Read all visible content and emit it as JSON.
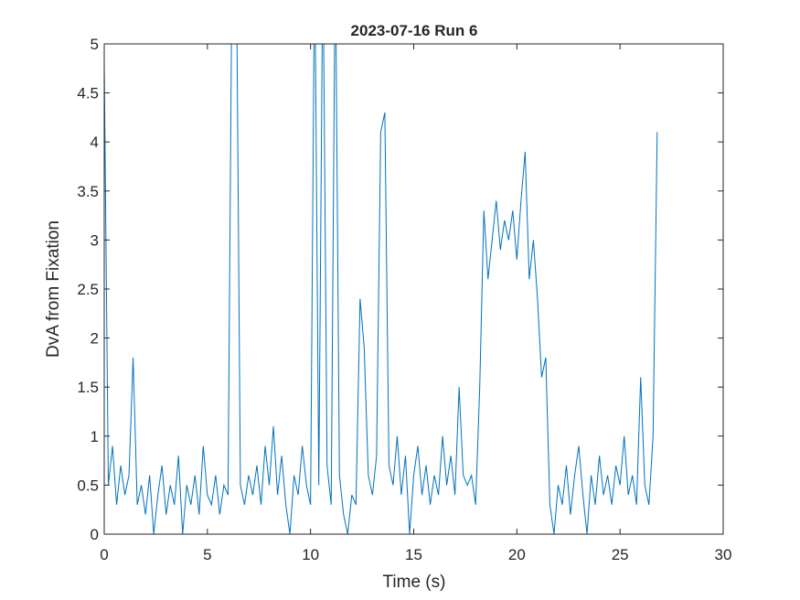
{
  "chart_data": {
    "type": "line",
    "title": "2023-07-16 Run 6",
    "x_label": "Time (s)",
    "y_label": "DvA from Fixation",
    "color": "#0072bd",
    "x": [
      0,
      0.2,
      0.4,
      0.6,
      0.8,
      1,
      1.2,
      1.4,
      1.6,
      1.8,
      2,
      2.2,
      2.4,
      2.6,
      2.8,
      3,
      3.2,
      3.4,
      3.6,
      3.8,
      4,
      4.2,
      4.4,
      4.6,
      4.8,
      5,
      5.2,
      5.4,
      5.6,
      5.8,
      6,
      6.2,
      6.4,
      6.6,
      6.8,
      7,
      7.2,
      7.4,
      7.6,
      7.8,
      8,
      8.2,
      8.4,
      8.6,
      8.8,
      9,
      9.2,
      9.4,
      9.6,
      9.8,
      10,
      10.2,
      10.4,
      10.6,
      10.8,
      11,
      11.2,
      11.4,
      11.6,
      11.8,
      12,
      12.2,
      12.4,
      12.6,
      12.8,
      13,
      13.2,
      13.4,
      13.6,
      13.8,
      14,
      14.2,
      14.4,
      14.6,
      14.8,
      15,
      15.2,
      15.4,
      15.6,
      15.8,
      16,
      16.2,
      16.4,
      16.6,
      16.8,
      17,
      17.2,
      17.4,
      17.6,
      17.8,
      18,
      18.2,
      18.4,
      18.6,
      18.8,
      19,
      19.2,
      19.4,
      19.6,
      19.8,
      20,
      20.2,
      20.4,
      20.6,
      20.8,
      21,
      21.2,
      21.4,
      21.6,
      21.8,
      22,
      22.2,
      22.4,
      22.6,
      22.8,
      23,
      23.2,
      23.4,
      23.6,
      23.8,
      24,
      24.2,
      24.4,
      24.6,
      24.8,
      25,
      25.2,
      25.4,
      25.6,
      25.8,
      26,
      26.2,
      26.4,
      26.6,
      26.8
    ],
    "values": [
      4.8,
      0.5,
      0.9,
      0.3,
      0.7,
      0.4,
      0.6,
      1.8,
      0.3,
      0.5,
      0.2,
      0.6,
      0,
      0.4,
      0.7,
      0.2,
      0.5,
      0.3,
      0.8,
      0,
      0.5,
      0.3,
      0.6,
      0.2,
      0.9,
      0.4,
      0.3,
      0.6,
      0.2,
      0.5,
      0.4,
      6,
      6,
      0.5,
      0.3,
      0.6,
      0.4,
      0.7,
      0.3,
      0.9,
      0.5,
      1.1,
      0.4,
      0.8,
      0.3,
      0,
      0.6,
      0.4,
      0.9,
      0.5,
      0.3,
      6,
      0.5,
      6,
      0.7,
      0.3,
      6,
      0.6,
      0.2,
      0,
      0.4,
      0.3,
      2.4,
      1.9,
      0.6,
      0.4,
      0.8,
      4.1,
      4.3,
      0.7,
      0.5,
      1,
      0.4,
      0.8,
      0,
      0.6,
      0.9,
      0.4,
      0.7,
      0.3,
      0.6,
      0.4,
      1,
      0.5,
      0.8,
      0.4,
      1.5,
      0.6,
      0.5,
      0.6,
      0.3,
      1.5,
      3.3,
      2.6,
      3,
      3.4,
      2.9,
      3.2,
      3,
      3.3,
      2.8,
      3.4,
      3.9,
      2.6,
      3,
      2.4,
      1.6,
      1.8,
      0.3,
      0,
      0.5,
      0.3,
      0.7,
      0.2,
      0.6,
      0.9,
      0.4,
      0,
      0.6,
      0.3,
      0.8,
      0.4,
      0.6,
      0.3,
      0.7,
      0.5,
      1,
      0.4,
      0.6,
      0.3,
      1.6,
      0.5,
      0.3,
      1,
      4.1
    ],
    "xlim": [
      0,
      30
    ],
    "xticks": [
      0,
      5,
      10,
      15,
      20,
      25,
      30
    ],
    "ylim": [
      0,
      5
    ],
    "yticks": [
      0,
      0.5,
      1,
      1.5,
      2,
      2.5,
      3,
      3.5,
      4,
      4.5,
      5
    ]
  }
}
